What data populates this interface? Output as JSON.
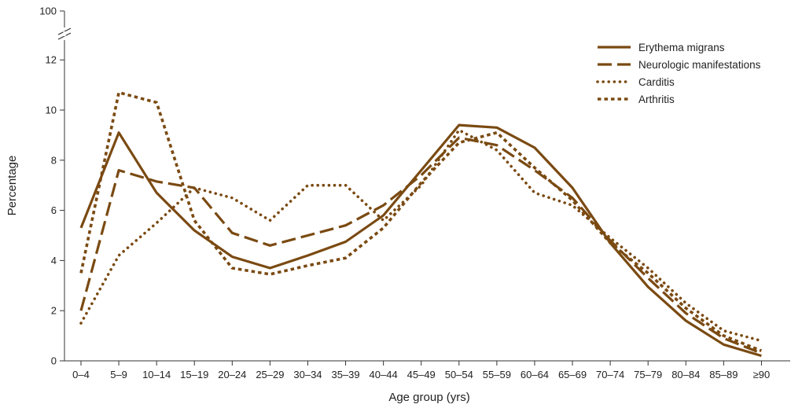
{
  "chart_data": {
    "type": "line",
    "title": "",
    "xlabel": "Age group (yrs)",
    "ylabel": "Percentage",
    "categories": [
      "0–4",
      "5–9",
      "10–14",
      "15–19",
      "20–24",
      "25–29",
      "30–34",
      "35–39",
      "40–44",
      "45–49",
      "50–54",
      "55–59",
      "60–64",
      "65–69",
      "70–74",
      "75–79",
      "80–84",
      "85–89",
      "≥90"
    ],
    "y_ticks": [
      0,
      2,
      4,
      6,
      8,
      10,
      12
    ],
    "y_break_tick": "100",
    "ylim": [
      0,
      12
    ],
    "grid": false,
    "legend_position": "top-right",
    "line_color": "#7a4a12",
    "series": [
      {
        "name": "Erythema migrans",
        "style": "solid",
        "values": [
          5.3,
          9.1,
          6.7,
          5.2,
          4.15,
          3.7,
          4.2,
          4.75,
          5.8,
          7.6,
          9.4,
          9.3,
          8.5,
          6.9,
          4.7,
          2.95,
          1.6,
          0.65,
          0.2
        ]
      },
      {
        "name": "Neurologic manifestations",
        "style": "dashed",
        "values": [
          2.0,
          7.6,
          7.15,
          6.9,
          5.1,
          4.6,
          5.0,
          5.4,
          6.2,
          7.4,
          8.9,
          8.6,
          7.6,
          6.5,
          4.8,
          3.3,
          1.9,
          0.9,
          0.3
        ]
      },
      {
        "name": "Carditis",
        "style": "dotted",
        "values": [
          1.5,
          4.2,
          5.5,
          6.9,
          6.5,
          5.6,
          7.0,
          7.0,
          5.6,
          7.0,
          9.2,
          8.4,
          6.7,
          6.2,
          4.9,
          3.7,
          2.3,
          1.2,
          0.8
        ]
      },
      {
        "name": "Arthritis",
        "style": "short-dashed",
        "values": [
          3.5,
          10.7,
          10.3,
          5.6,
          3.7,
          3.45,
          3.8,
          4.1,
          5.3,
          7.1,
          8.7,
          9.1,
          7.7,
          6.4,
          4.7,
          3.5,
          2.1,
          1.0,
          0.4
        ]
      }
    ]
  }
}
